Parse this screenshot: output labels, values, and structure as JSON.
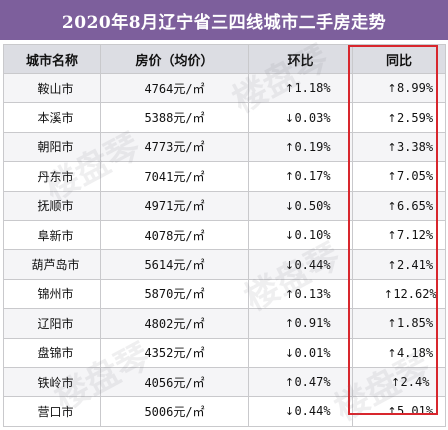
{
  "title": "2020年8月辽宁省三四线城市二手房走势",
  "header": {
    "city": "城市名称",
    "price": "房价（均价）",
    "mom": "环比",
    "yoy": "同比"
  },
  "watermark": "楼盘琴",
  "rows": [
    {
      "city": "鞍山市",
      "price": "4764元/㎡",
      "mom_dir": "↑",
      "mom": "1.18%",
      "yoy_dir": "↑",
      "yoy": "8.99%"
    },
    {
      "city": "本溪市",
      "price": "5388元/㎡",
      "mom_dir": "↓",
      "mom": "0.03%",
      "yoy_dir": "↑",
      "yoy": "2.59%"
    },
    {
      "city": "朝阳市",
      "price": "4773元/㎡",
      "mom_dir": "↑",
      "mom": "0.19%",
      "yoy_dir": "↑",
      "yoy": "3.38%"
    },
    {
      "city": "丹东市",
      "price": "7041元/㎡",
      "mom_dir": "↑",
      "mom": "0.17%",
      "yoy_dir": "↑",
      "yoy": "7.05%"
    },
    {
      "city": "抚顺市",
      "price": "4971元/㎡",
      "mom_dir": "↓",
      "mom": "0.50%",
      "yoy_dir": "↑",
      "yoy": "6.65%"
    },
    {
      "city": "阜新市",
      "price": "4078元/㎡",
      "mom_dir": "↓",
      "mom": "0.10%",
      "yoy_dir": "↑",
      "yoy": "7.12%"
    },
    {
      "city": "葫芦岛市",
      "price": "5614元/㎡",
      "mom_dir": "↓",
      "mom": "0.44%",
      "yoy_dir": "↑",
      "yoy": "2.41%"
    },
    {
      "city": "锦州市",
      "price": "5870元/㎡",
      "mom_dir": "↑",
      "mom": "0.13%",
      "yoy_dir": "↑",
      "yoy": "12.62%"
    },
    {
      "city": "辽阳市",
      "price": "4802元/㎡",
      "mom_dir": "↑",
      "mom": "0.91%",
      "yoy_dir": "↑",
      "yoy": "1.85%"
    },
    {
      "city": "盘锦市",
      "price": "4352元/㎡",
      "mom_dir": "↓",
      "mom": "0.01%",
      "yoy_dir": "↑",
      "yoy": "4.18%"
    },
    {
      "city": "铁岭市",
      "price": "4056元/㎡",
      "mom_dir": "↑",
      "mom": "0.47%",
      "yoy_dir": "↑",
      "yoy": "2.4%"
    },
    {
      "city": "营口市",
      "price": "5006元/㎡",
      "mom_dir": "↓",
      "mom": "0.44%",
      "yoy_dir": "↑",
      "yoy": "5.01%"
    }
  ],
  "colors": {
    "title_bg": "#7d5f9c",
    "header_bg": "#dcdde3",
    "highlight": "#d8262d"
  }
}
